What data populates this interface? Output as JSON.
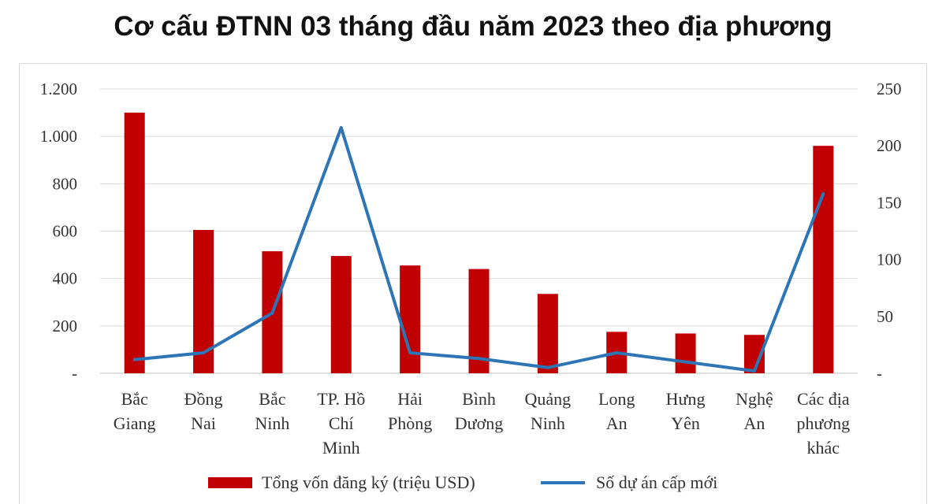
{
  "chart_data": {
    "type": "bar",
    "title": "Cơ cấu ĐTNN 03 tháng đầu năm 2023 theo địa phương",
    "categories": [
      [
        "Bắc",
        "Giang"
      ],
      [
        "Đồng",
        "Nai"
      ],
      [
        "Bắc",
        "Ninh"
      ],
      [
        "TP. Hồ",
        "Chí",
        "Minh"
      ],
      [
        "Hải",
        "Phòng"
      ],
      [
        "Bình",
        "Dương"
      ],
      [
        "Quảng",
        "Ninh"
      ],
      [
        "Long",
        "An"
      ],
      [
        "Hưng",
        "Yên"
      ],
      [
        "Nghệ",
        "An"
      ],
      [
        "Các địa",
        "phương",
        "khác"
      ]
    ],
    "series": [
      {
        "name": "Tổng vốn đăng ký (triệu USD)",
        "type": "bar",
        "axis": "left",
        "color": "#c00000",
        "values": [
          1100,
          605,
          515,
          495,
          455,
          440,
          335,
          175,
          168,
          162,
          960
        ]
      },
      {
        "name": "Số dự án cấp mới",
        "type": "line",
        "axis": "right",
        "color": "#2e75b6",
        "values": [
          12,
          18,
          53,
          216,
          18,
          13,
          5,
          18,
          10,
          2,
          158
        ]
      }
    ],
    "y_left": {
      "ylim": [
        0,
        1200
      ],
      "ticks": [
        "-",
        "200",
        "400",
        "600",
        "800",
        "1.000",
        "1.200"
      ]
    },
    "y_right": {
      "ylim": [
        0,
        250
      ],
      "ticks": [
        "-",
        "50",
        "100",
        "150",
        "200",
        "250"
      ]
    },
    "grid": true,
    "legend": "bottom"
  }
}
